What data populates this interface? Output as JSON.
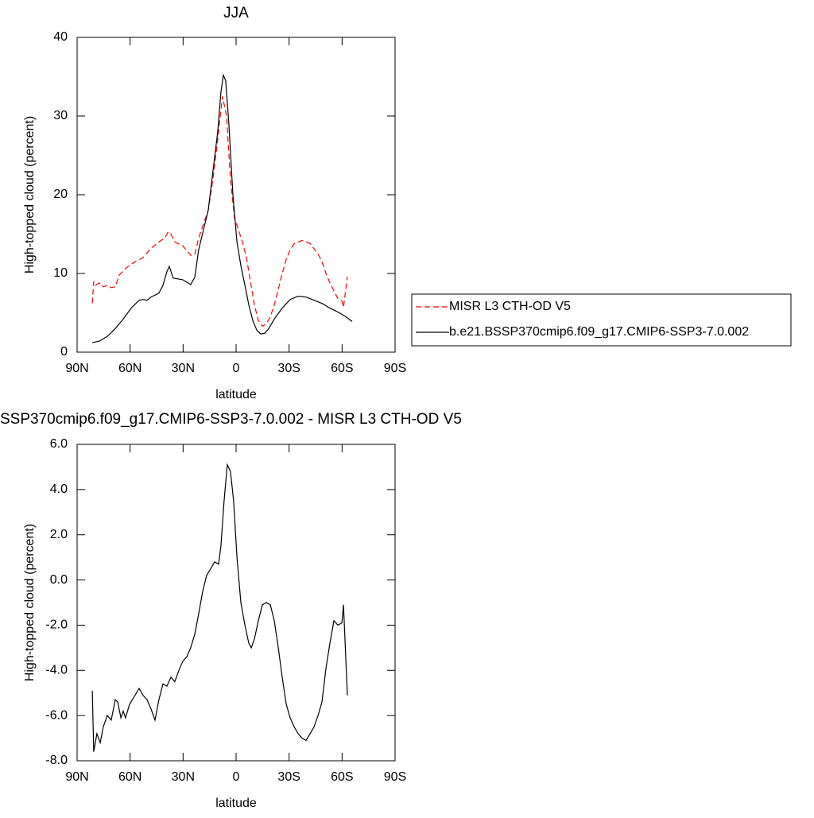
{
  "chart_data": [
    {
      "type": "line",
      "title": "JJA",
      "xlabel": "latitude",
      "ylabel": "High-topped cloud (percent)",
      "xlim": [
        90,
        -90
      ],
      "xticks": [
        {
          "value": 90,
          "label": "90N"
        },
        {
          "value": 60,
          "label": "60N"
        },
        {
          "value": 30,
          "label": "30N"
        },
        0,
        {
          "value": -30,
          "label": "30S"
        },
        {
          "value": -60,
          "label": "60S"
        },
        {
          "value": -90,
          "label": "90S"
        }
      ],
      "ylim": [
        0,
        40
      ],
      "yticks": [
        0,
        10,
        20,
        30,
        40
      ],
      "legend": "right",
      "series": [
        {
          "name": "MISR L3 CTH-OD V5",
          "color": "#ff0000",
          "dash": true,
          "x": [
            81.4,
            80.6,
            79.6,
            77.4,
            75.2,
            72.9,
            70.7,
            68.4,
            66.2,
            63.9,
            61.7,
            57.2,
            52.7,
            48.2,
            43.7,
            40.5,
            38.3,
            36.9,
            34.7,
            30.2,
            25.7,
            23.4,
            21.2,
            18.9,
            15.8,
            13.1,
            10.4,
            7.7,
            5.4,
            3.2,
            0.9,
            -1.4,
            -3.6,
            -5.9,
            -8.1,
            -10.4,
            -12.6,
            -14.9,
            -17.1,
            -19.4,
            -21.6,
            -23.9,
            -26.1,
            -28.4,
            -30.6,
            -32.9,
            -37.4,
            -41.9,
            -46.4,
            -48.6,
            -50.9,
            -53.1,
            -55.4,
            -57.6,
            -59.9,
            -60.8,
            -63.0
          ],
          "values": [
            6.2,
            9.0,
            8.5,
            8.8,
            8.3,
            8.5,
            8.2,
            8.3,
            9.8,
            10.3,
            10.8,
            11.5,
            12.0,
            13.2,
            14.0,
            14.5,
            15.3,
            15.0,
            14.0,
            13.5,
            12.3,
            12.4,
            14.5,
            16.0,
            18.0,
            22.0,
            27.0,
            32.5,
            30.0,
            22.0,
            17.0,
            15.5,
            14.0,
            12.0,
            9.0,
            6.0,
            4.0,
            3.3,
            3.6,
            4.5,
            6.0,
            8.0,
            10.0,
            11.8,
            13.0,
            13.8,
            14.2,
            13.8,
            12.5,
            11.5,
            10.0,
            8.8,
            7.8,
            6.8,
            6.5,
            5.7,
            9.6
          ]
        },
        {
          "name": "b.e21.BSSP370cmip6.f09_g17.CMIP6-SSP3-7.0.002",
          "color": "#000000",
          "dash": false,
          "x": [
            81.4,
            77.4,
            72.9,
            68.4,
            63.9,
            59.4,
            54.9,
            52.7,
            50.4,
            48.2,
            43.7,
            41.4,
            39.2,
            37.8,
            35.6,
            30.2,
            25.7,
            23.4,
            21.2,
            18.0,
            15.8,
            13.1,
            10.4,
            8.6,
            7.2,
            5.9,
            4.1,
            1.8,
            -0.5,
            -2.7,
            -5.0,
            -7.2,
            -9.5,
            -11.7,
            -14.0,
            -16.2,
            -18.5,
            -21.6,
            -26.1,
            -30.6,
            -35.1,
            -39.6,
            -44.1,
            -48.6,
            -53.1,
            -57.6,
            -62.1,
            -65.7
          ],
          "values": [
            1.2,
            1.4,
            2.0,
            3.0,
            4.2,
            5.6,
            6.6,
            6.7,
            6.6,
            7.0,
            7.5,
            8.5,
            10.2,
            10.9,
            9.4,
            9.2,
            8.6,
            9.5,
            13.0,
            16.0,
            18.0,
            23.0,
            28.0,
            33.0,
            35.2,
            34.5,
            29.0,
            20.0,
            14.0,
            11.0,
            8.5,
            6.0,
            4.0,
            2.8,
            2.3,
            2.4,
            3.0,
            4.2,
            5.6,
            6.7,
            7.1,
            7.0,
            6.6,
            6.2,
            5.6,
            5.1,
            4.5,
            3.9
          ]
        }
      ]
    },
    {
      "type": "line",
      "title": "SSP370cmip6.f09_g17.CMIP6-SSP3-7.0.002 - MISR L3 CTH-OD V5",
      "xlabel": "latitude",
      "ylabel": "High-topped cloud (percent)",
      "xlim": [
        90,
        -90
      ],
      "xticks": [
        {
          "value": 90,
          "label": "90N"
        },
        {
          "value": 60,
          "label": "60N"
        },
        {
          "value": 30,
          "label": "30N"
        },
        0,
        {
          "value": -30,
          "label": "30S"
        },
        {
          "value": -60,
          "label": "60S"
        },
        {
          "value": -90,
          "label": "90S"
        }
      ],
      "ylim": [
        -8,
        6
      ],
      "yticks": [
        {
          "value": -8,
          "label": "-8.0"
        },
        {
          "value": -6,
          "label": "-6.0"
        },
        {
          "value": -4,
          "label": "-4.0"
        },
        {
          "value": -2,
          "label": "-2.0"
        },
        {
          "value": 0,
          "label": "0.0"
        },
        {
          "value": 2,
          "label": "2.0"
        },
        {
          "value": 4,
          "label": "4.0"
        },
        {
          "value": 6,
          "label": "6.0"
        }
      ],
      "series": [
        {
          "color": "#000000",
          "dash": false,
          "x": [
            81.4,
            80.6,
            78.8,
            76.9,
            75.2,
            72.9,
            70.7,
            68.4,
            67.0,
            65.2,
            63.9,
            62.6,
            60.3,
            57.2,
            54.9,
            52.7,
            50.4,
            48.2,
            45.9,
            43.7,
            41.4,
            39.2,
            36.9,
            34.7,
            32.4,
            30.2,
            27.9,
            25.7,
            23.4,
            21.2,
            18.9,
            16.7,
            14.4,
            12.2,
            9.9,
            8.6,
            6.8,
            5.0,
            3.2,
            1.4,
            -0.5,
            -2.7,
            -5.0,
            -7.2,
            -8.6,
            -10.4,
            -12.6,
            -14.9,
            -17.1,
            -19.4,
            -21.6,
            -23.9,
            -26.1,
            -28.4,
            -30.6,
            -32.9,
            -35.1,
            -37.4,
            -39.6,
            -41.9,
            -44.1,
            -46.4,
            -48.6,
            -50.9,
            -53.1,
            -55.4,
            -57.6,
            -59.9,
            -60.8,
            -63.0
          ],
          "values": [
            -4.9,
            -7.6,
            -6.8,
            -7.2,
            -6.5,
            -6.0,
            -6.2,
            -5.3,
            -5.4,
            -6.1,
            -5.8,
            -6.1,
            -5.5,
            -5.1,
            -4.8,
            -5.1,
            -5.3,
            -5.7,
            -6.2,
            -5.3,
            -4.6,
            -4.7,
            -4.3,
            -4.5,
            -4.0,
            -3.6,
            -3.4,
            -3.0,
            -2.4,
            -1.5,
            -0.5,
            0.2,
            0.5,
            0.8,
            0.7,
            1.5,
            3.5,
            5.1,
            4.8,
            3.5,
            1.0,
            -1.0,
            -2.0,
            -2.8,
            -3.0,
            -2.6,
            -1.8,
            -1.1,
            -1.0,
            -1.1,
            -1.8,
            -3.0,
            -4.3,
            -5.5,
            -6.1,
            -6.5,
            -6.8,
            -7.0,
            -7.1,
            -6.8,
            -6.5,
            -6.0,
            -5.4,
            -3.9,
            -2.8,
            -1.8,
            -2.0,
            -1.9,
            -1.1,
            -5.1
          ]
        }
      ]
    }
  ]
}
